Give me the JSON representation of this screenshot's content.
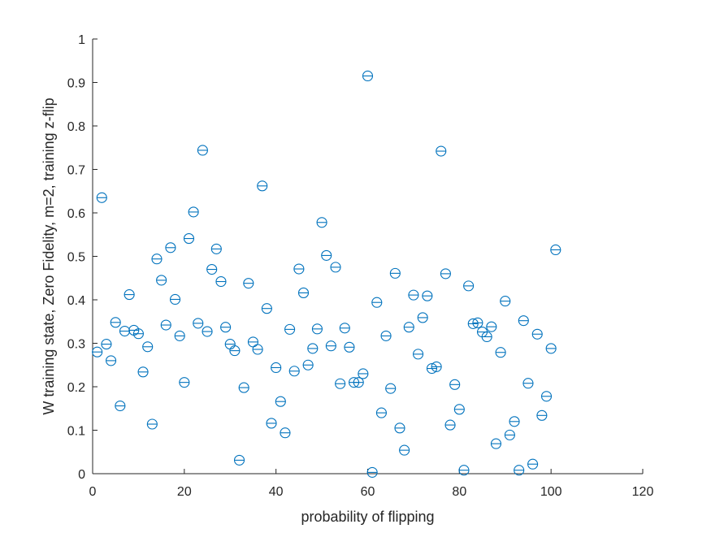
{
  "chart_data": {
    "type": "scatter",
    "xlabel": "probability of flipping",
    "ylabel": "W training state, Zero Fidelity, m=2, training z-flip",
    "xlim": [
      0,
      120
    ],
    "ylim": [
      0,
      1
    ],
    "xticks": [
      0,
      20,
      40,
      60,
      80,
      100,
      120
    ],
    "yticks": [
      0,
      0.1,
      0.2,
      0.3,
      0.4,
      0.5,
      0.6,
      0.7,
      0.8,
      0.9,
      1
    ],
    "xtick_labels": [
      "0",
      "20",
      "40",
      "60",
      "80",
      "100",
      "120"
    ],
    "ytick_labels": [
      "0",
      "0.1",
      "0.2",
      "0.3",
      "0.4",
      "0.5",
      "0.6",
      "0.7",
      "0.8",
      "0.9",
      "1"
    ],
    "grid": false,
    "marker": "circle-with-horizontal-line",
    "marker_color": "#0072BD",
    "axis_color": "#262626",
    "series": [
      {
        "x": [
          1,
          2,
          3,
          4,
          5,
          6,
          7,
          8,
          9,
          10,
          11,
          12,
          13,
          14,
          15,
          16,
          17,
          18,
          19,
          20,
          21,
          22,
          23,
          24,
          25,
          26,
          27,
          28,
          29,
          30,
          31,
          32,
          33,
          34,
          35,
          36,
          37,
          38,
          39,
          40,
          41,
          42,
          43,
          44,
          45,
          46,
          47,
          48,
          49,
          50,
          51,
          52,
          53,
          54,
          55,
          56,
          57,
          58,
          59,
          60,
          61,
          62,
          63,
          64,
          65,
          66,
          67,
          68,
          69,
          70,
          71,
          72,
          73,
          74,
          75,
          76,
          77,
          78,
          79,
          80,
          81,
          82,
          83,
          84,
          85,
          86,
          87,
          88,
          89,
          90,
          91,
          92,
          93,
          94,
          95,
          96,
          97,
          98,
          99,
          100,
          101
        ],
        "y": [
          0.28,
          0.635,
          0.298,
          0.26,
          0.348,
          0.156,
          0.328,
          0.412,
          0.33,
          0.322,
          0.234,
          0.292,
          0.114,
          0.494,
          0.445,
          0.342,
          0.52,
          0.401,
          0.317,
          0.21,
          0.541,
          0.602,
          0.346,
          0.744,
          0.327,
          0.47,
          0.517,
          0.442,
          0.337,
          0.298,
          0.283,
          0.031,
          0.198,
          0.438,
          0.303,
          0.286,
          0.662,
          0.38,
          0.116,
          0.244,
          0.166,
          0.094,
          0.332,
          0.236,
          0.471,
          0.416,
          0.25,
          0.288,
          0.333,
          0.578,
          0.502,
          0.294,
          0.475,
          0.207,
          0.335,
          0.291,
          0.21,
          0.21,
          0.23,
          0.915,
          0.003,
          0.394,
          0.14,
          0.317,
          0.196,
          0.461,
          0.105,
          0.054,
          0.337,
          0.411,
          0.275,
          0.359,
          0.409,
          0.242,
          0.246,
          0.742,
          0.46,
          0.112,
          0.205,
          0.148,
          0.008,
          0.432,
          0.345,
          0.347,
          0.326,
          0.315,
          0.338,
          0.069,
          0.279,
          0.397,
          0.089,
          0.12,
          0.008,
          0.352,
          0.208,
          0.022,
          0.321,
          0.134,
          0.178,
          0.288,
          0.515
        ]
      }
    ]
  }
}
